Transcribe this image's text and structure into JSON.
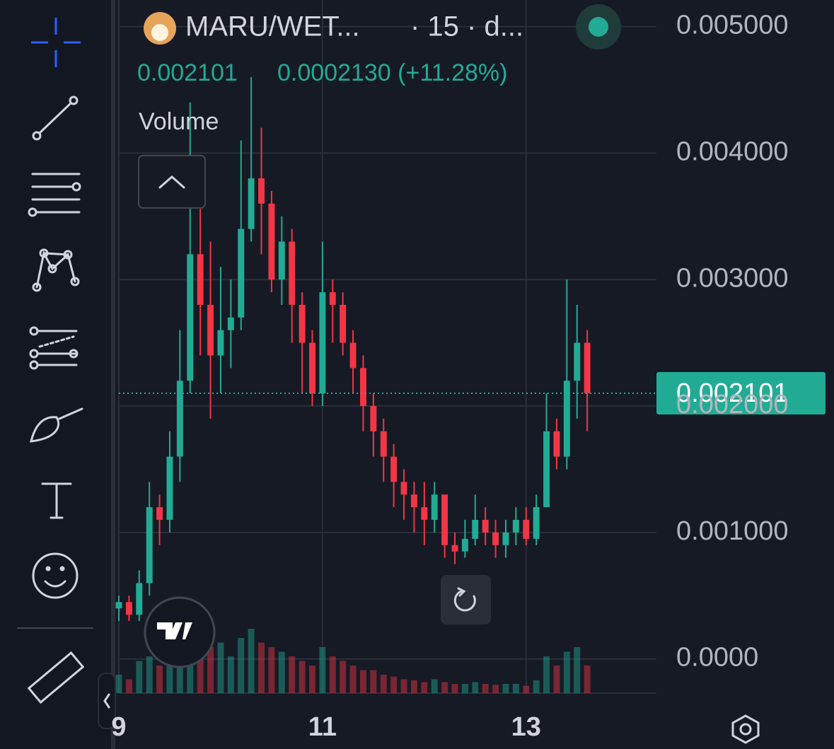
{
  "header": {
    "symbol": "MARU/WET...",
    "interval": "· 15 · d...",
    "change": "0.0002130 (+11.28%)",
    "volume_label": "Volume"
  },
  "chart_data": {
    "type": "candlestick",
    "up_color": "#22ab94",
    "down_color": "#f23645",
    "x": [
      9.0,
      9.1,
      9.2,
      9.3,
      9.4,
      9.5,
      9.6,
      9.7,
      9.8,
      9.9,
      10.0,
      10.1,
      10.2,
      10.3,
      10.4,
      10.5,
      10.6,
      10.7,
      10.8,
      10.9,
      11.0,
      11.1,
      11.2,
      11.3,
      11.4,
      11.5,
      11.6,
      11.7,
      11.8,
      11.9,
      12.0,
      12.1,
      12.2,
      12.3,
      12.4,
      12.5,
      12.6,
      12.7,
      12.8,
      12.9,
      13.0,
      13.1,
      13.2,
      13.3,
      13.4,
      13.5,
      13.6
    ],
    "open": [
      0.0004,
      0.00045,
      0.00035,
      0.0006,
      0.0012,
      0.0011,
      0.0016,
      0.0022,
      0.0032,
      0.0028,
      0.0024,
      0.0026,
      0.0027,
      0.0034,
      0.0038,
      0.0036,
      0.003,
      0.0033,
      0.0028,
      0.0025,
      0.0021,
      0.0029,
      0.0028,
      0.0025,
      0.0023,
      0.002,
      0.0018,
      0.0016,
      0.0014,
      0.0013,
      0.0012,
      0.0011,
      0.0013,
      0.0009,
      0.00085,
      0.00095,
      0.0011,
      0.001,
      0.0009,
      0.001,
      0.0011,
      0.00095,
      0.0012,
      0.0018,
      0.0016,
      0.0022,
      0.0025
    ],
    "high": [
      0.0005,
      0.0005,
      0.0007,
      0.0014,
      0.0013,
      0.0018,
      0.0026,
      0.0044,
      0.0036,
      0.0033,
      0.0031,
      0.003,
      0.0041,
      0.0046,
      0.0042,
      0.0037,
      0.0035,
      0.0034,
      0.0029,
      0.0026,
      0.0033,
      0.003,
      0.0029,
      0.0026,
      0.0024,
      0.0021,
      0.0019,
      0.0017,
      0.0015,
      0.0014,
      0.0014,
      0.0014,
      0.0013,
      0.001,
      0.0011,
      0.0013,
      0.0012,
      0.0011,
      0.0011,
      0.0012,
      0.0012,
      0.0013,
      0.0021,
      0.0019,
      0.003,
      0.0028,
      0.0026
    ],
    "low": [
      0.0003,
      0.0003,
      0.0003,
      0.0005,
      0.0009,
      0.001,
      0.0014,
      0.0021,
      0.0024,
      0.0019,
      0.0021,
      0.0023,
      0.0026,
      0.0033,
      0.0032,
      0.0029,
      0.0028,
      0.0025,
      0.0021,
      0.002,
      0.002,
      0.0025,
      0.0024,
      0.0021,
      0.0018,
      0.0016,
      0.0014,
      0.0012,
      0.0011,
      0.001,
      0.0009,
      0.001,
      0.0008,
      0.00075,
      0.0008,
      0.0009,
      0.0009,
      0.0008,
      0.0008,
      0.0009,
      0.0009,
      0.0009,
      0.0012,
      0.0015,
      0.0015,
      0.0019,
      0.0018
    ],
    "close": [
      0.00045,
      0.00035,
      0.0006,
      0.0012,
      0.0011,
      0.0016,
      0.0022,
      0.0032,
      0.0028,
      0.0024,
      0.0026,
      0.0027,
      0.0034,
      0.0038,
      0.0036,
      0.003,
      0.0033,
      0.0028,
      0.0025,
      0.0021,
      0.0029,
      0.0028,
      0.0025,
      0.0023,
      0.002,
      0.0018,
      0.0016,
      0.0014,
      0.0013,
      0.0012,
      0.0011,
      0.0013,
      0.0009,
      0.00085,
      0.00095,
      0.0011,
      0.001,
      0.0009,
      0.001,
      0.0011,
      0.00095,
      0.0012,
      0.0018,
      0.0016,
      0.0022,
      0.0025,
      0.002101
    ],
    "volume": [
      20,
      15,
      35,
      40,
      30,
      45,
      60,
      90,
      70,
      50,
      55,
      40,
      60,
      70,
      55,
      50,
      45,
      40,
      35,
      30,
      50,
      40,
      35,
      30,
      25,
      25,
      20,
      18,
      15,
      14,
      12,
      15,
      12,
      10,
      10,
      12,
      10,
      9,
      10,
      10,
      8,
      14,
      40,
      30,
      45,
      50,
      30
    ],
    "last_price": 0.002101,
    "xlim": [
      9,
      14.28
    ],
    "xticks": [
      9,
      11,
      13
    ],
    "ylim": [
      -0.00027,
      0.00521
    ],
    "yticks": [
      {
        "value": 0,
        "label": "0.0000"
      },
      {
        "value": 0.001,
        "label": "0.001000"
      },
      {
        "value": 0.002,
        "label": "0.002000"
      },
      {
        "value": 0.003,
        "label": "0.003000"
      },
      {
        "value": 0.004,
        "label": "0.004000"
      },
      {
        "value": 0.005,
        "label": "0.005000"
      }
    ],
    "grid": true
  }
}
